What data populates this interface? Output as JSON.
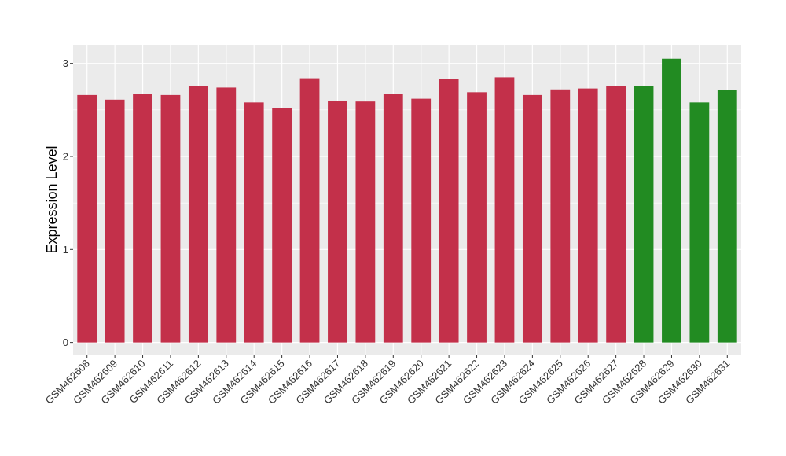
{
  "chart_data": {
    "type": "bar",
    "title": "",
    "xlabel": "",
    "ylabel": "Expression Level",
    "ylim": [
      -0.13,
      3.2
    ],
    "yticks": [
      0,
      1,
      2,
      3
    ],
    "grid": true,
    "legend": "none",
    "colors": {
      "red": "#c3304a",
      "green": "#228b22",
      "panel": "#ebebeb",
      "grid": "#ffffff"
    },
    "categories": [
      "GSM462608",
      "GSM462609",
      "GSM462610",
      "GSM462611",
      "GSM462612",
      "GSM462613",
      "GSM462614",
      "GSM462615",
      "GSM462616",
      "GSM462617",
      "GSM462618",
      "GSM462619",
      "GSM462620",
      "GSM462621",
      "GSM462622",
      "GSM462623",
      "GSM462624",
      "GSM462625",
      "GSM462626",
      "GSM462627",
      "GSM462628",
      "GSM462629",
      "GSM462630",
      "GSM462631"
    ],
    "values": [
      2.66,
      2.61,
      2.67,
      2.66,
      2.76,
      2.74,
      2.58,
      2.52,
      2.84,
      2.6,
      2.59,
      2.67,
      2.62,
      2.83,
      2.69,
      2.85,
      2.66,
      2.72,
      2.73,
      2.76,
      2.76,
      3.05,
      2.58,
      2.71
    ],
    "bar_colors": [
      "red",
      "red",
      "red",
      "red",
      "red",
      "red",
      "red",
      "red",
      "red",
      "red",
      "red",
      "red",
      "red",
      "red",
      "red",
      "red",
      "red",
      "red",
      "red",
      "red",
      "green",
      "green",
      "green",
      "green"
    ]
  }
}
